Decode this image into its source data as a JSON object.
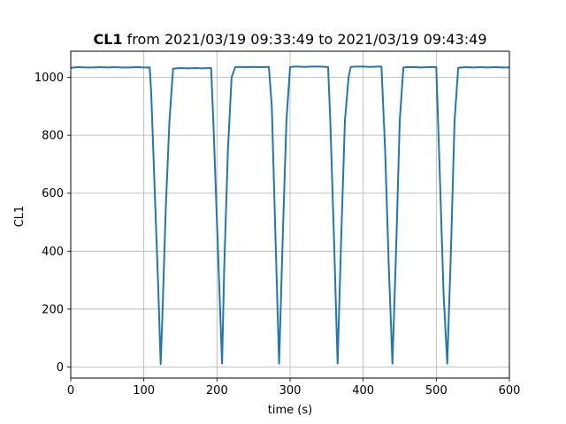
{
  "chart_data": {
    "type": "line",
    "title": {
      "signal": "CL1",
      "rest": " from 2021/03/19 09:33:49 to 2021/03/19 09:43:49"
    },
    "xlabel": "time (s)",
    "ylabel": "CL1",
    "xlim": [
      0,
      600
    ],
    "ylim": [
      -38,
      1090
    ],
    "xticks": [
      0,
      100,
      200,
      300,
      400,
      500,
      600
    ],
    "yticks": [
      0,
      200,
      400,
      600,
      800,
      1000
    ],
    "grid": true,
    "line_color": "#1f77b4",
    "series": [
      {
        "x": [
          0,
          10,
          20,
          30,
          40,
          50,
          60,
          70,
          80,
          90,
          100,
          108,
          110,
          115,
          120,
          123,
          125,
          130,
          135,
          140,
          145,
          150,
          160,
          170,
          180,
          190,
          192,
          195,
          200,
          205,
          207,
          210,
          215,
          220,
          225,
          230,
          240,
          250,
          260,
          270,
          271,
          275,
          280,
          285,
          290,
          295,
          300,
          305,
          310,
          320,
          330,
          340,
          350,
          352,
          355,
          360,
          365,
          370,
          375,
          380,
          383,
          390,
          400,
          410,
          420,
          425,
          430,
          435,
          440,
          445,
          450,
          455,
          460,
          470,
          480,
          490,
          500,
          505,
          510,
          515,
          520,
          525,
          530,
          540,
          550,
          560,
          570,
          580,
          590,
          600
        ],
        "y": [
          1033,
          1035,
          1034,
          1034,
          1035,
          1034,
          1035,
          1034,
          1034,
          1035,
          1034,
          1034,
          950,
          600,
          250,
          10,
          150,
          550,
          850,
          1030,
          1031,
          1032,
          1031,
          1032,
          1031,
          1032,
          1032,
          850,
          500,
          150,
          12,
          350,
          750,
          1000,
          1035,
          1036,
          1035,
          1036,
          1035,
          1036,
          1036,
          900,
          450,
          12,
          450,
          850,
          1035,
          1037,
          1037,
          1036,
          1037,
          1037,
          1036,
          1036,
          850,
          450,
          12,
          450,
          850,
          1000,
          1036,
          1037,
          1037,
          1036,
          1037,
          1037,
          750,
          350,
          12,
          400,
          850,
          1034,
          1035,
          1035,
          1034,
          1035,
          1035,
          650,
          250,
          12,
          400,
          850,
          1033,
          1035,
          1034,
          1035,
          1034,
          1035,
          1034,
          1034
        ]
      }
    ]
  }
}
